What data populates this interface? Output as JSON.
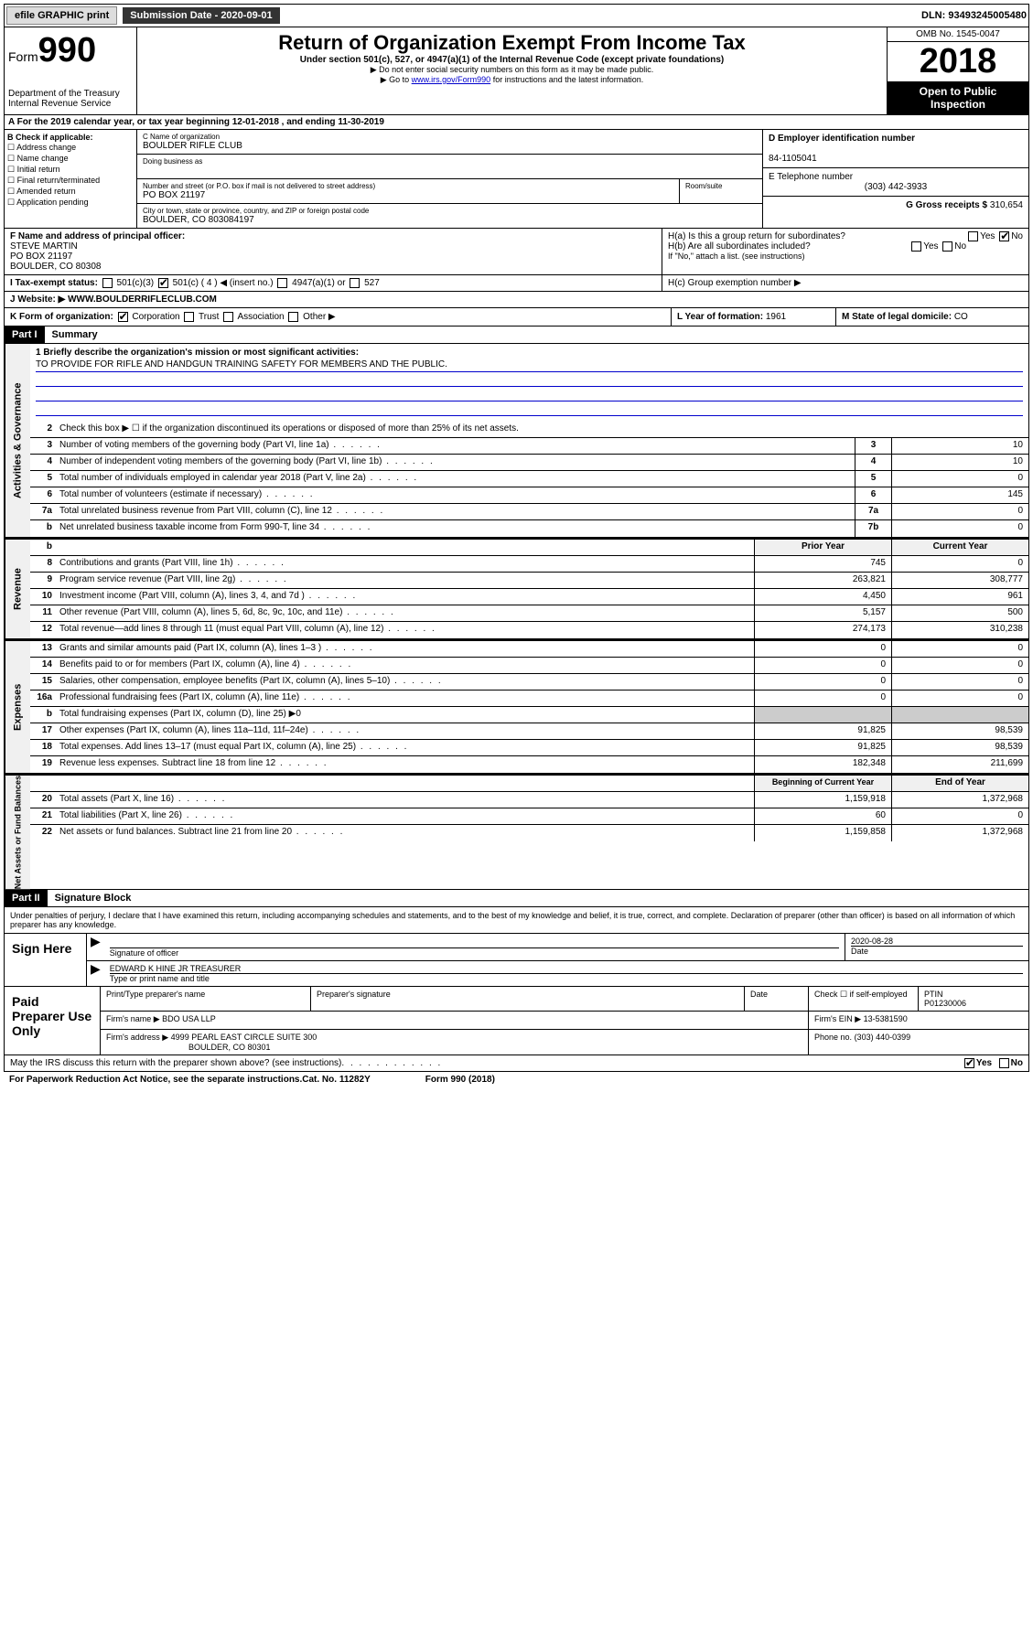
{
  "topbar": {
    "efile": "efile GRAPHIC print",
    "submission_label": "Submission Date - 2020-09-01",
    "dln": "DLN: 93493245005480"
  },
  "header": {
    "form_label": "Form",
    "form_number": "990",
    "dept": "Department of the Treasury",
    "irs": "Internal Revenue Service",
    "title": "Return of Organization Exempt From Income Tax",
    "subtitle": "Under section 501(c), 527, or 4947(a)(1) of the Internal Revenue Code (except private foundations)",
    "note1": "▶ Do not enter social security numbers on this form as it may be made public.",
    "note2_pre": "▶ Go to ",
    "note2_link": "www.irs.gov/Form990",
    "note2_post": " for instructions and the latest information.",
    "omb": "OMB No. 1545-0047",
    "year": "2018",
    "open": "Open to Public Inspection"
  },
  "taxyear": "A For the 2019 calendar year, or tax year beginning 12-01-2018   , and ending 11-30-2019",
  "boxB": {
    "label": "B Check if applicable:",
    "items": [
      "Address change",
      "Name change",
      "Initial return",
      "Final return/terminated",
      "Amended return",
      "Application pending"
    ]
  },
  "boxC": {
    "name_label": "C Name of organization",
    "name": "BOULDER RIFLE CLUB",
    "dba_label": "Doing business as",
    "addr_label": "Number and street (or P.O. box if mail is not delivered to street address)",
    "room_label": "Room/suite",
    "addr": "PO BOX 21197",
    "city_label": "City or town, state or province, country, and ZIP or foreign postal code",
    "city": "BOULDER, CO  803084197"
  },
  "boxD": {
    "label": "D Employer identification number",
    "value": "84-1105041"
  },
  "boxE": {
    "label": "E Telephone number",
    "value": "(303) 442-3933"
  },
  "boxG": {
    "label": "G Gross receipts $",
    "value": "310,654"
  },
  "boxF": {
    "label": "F Name and address of principal officer:",
    "name": "STEVE MARTIN",
    "addr1": "PO BOX 21197",
    "addr2": "BOULDER, CO  80308"
  },
  "boxH": {
    "a": "H(a)  Is this a group return for subordinates?",
    "b": "H(b)  Are all subordinates included?",
    "b_note": "If \"No,\" attach a list. (see instructions)",
    "c": "H(c)  Group exemption number ▶",
    "yes": "Yes",
    "no": "No"
  },
  "boxI": {
    "label": "I Tax-exempt status:",
    "c3": "501(c)(3)",
    "c": "501(c) ( 4 ) ◀ (insert no.)",
    "a1": "4947(a)(1) or",
    "527": "527"
  },
  "boxJ": {
    "label": "J   Website: ▶",
    "value": "WWW.BOULDERRIFLECLUB.COM"
  },
  "boxK": {
    "label": "K Form of organization:",
    "corp": "Corporation",
    "trust": "Trust",
    "assoc": "Association",
    "other": "Other ▶"
  },
  "boxL": {
    "label": "L Year of formation:",
    "value": "1961"
  },
  "boxM": {
    "label": "M State of legal domicile:",
    "value": "CO"
  },
  "part1": {
    "header": "Part I",
    "title": "Summary"
  },
  "mission": {
    "label": "1  Briefly describe the organization's mission or most significant activities:",
    "text": "TO PROVIDE FOR RIFLE AND HANDGUN TRAINING SAFETY FOR MEMBERS AND THE PUBLIC."
  },
  "gov_lines": [
    {
      "num": "2",
      "desc": "Check this box ▶ ☐  if the organization discontinued its operations or disposed of more than 25% of its net assets."
    },
    {
      "num": "3",
      "desc": "Number of voting members of the governing body (Part VI, line 1a)",
      "box": "3",
      "val": "10"
    },
    {
      "num": "4",
      "desc": "Number of independent voting members of the governing body (Part VI, line 1b)",
      "box": "4",
      "val": "10"
    },
    {
      "num": "5",
      "desc": "Total number of individuals employed in calendar year 2018 (Part V, line 2a)",
      "box": "5",
      "val": "0"
    },
    {
      "num": "6",
      "desc": "Total number of volunteers (estimate if necessary)",
      "box": "6",
      "val": "145"
    },
    {
      "num": "7a",
      "desc": "Total unrelated business revenue from Part VIII, column (C), line 12",
      "box": "7a",
      "val": "0"
    },
    {
      "num": "b",
      "desc": "Net unrelated business taxable income from Form 990-T, line 34",
      "box": "7b",
      "val": "0"
    }
  ],
  "rev_header": {
    "prior": "Prior Year",
    "current": "Current Year"
  },
  "rev_lines": [
    {
      "num": "8",
      "desc": "Contributions and grants (Part VIII, line 1h)",
      "prior": "745",
      "curr": "0"
    },
    {
      "num": "9",
      "desc": "Program service revenue (Part VIII, line 2g)",
      "prior": "263,821",
      "curr": "308,777"
    },
    {
      "num": "10",
      "desc": "Investment income (Part VIII, column (A), lines 3, 4, and 7d )",
      "prior": "4,450",
      "curr": "961"
    },
    {
      "num": "11",
      "desc": "Other revenue (Part VIII, column (A), lines 5, 6d, 8c, 9c, 10c, and 11e)",
      "prior": "5,157",
      "curr": "500"
    },
    {
      "num": "12",
      "desc": "Total revenue—add lines 8 through 11 (must equal Part VIII, column (A), line 12)",
      "prior": "274,173",
      "curr": "310,238"
    }
  ],
  "exp_lines": [
    {
      "num": "13",
      "desc": "Grants and similar amounts paid (Part IX, column (A), lines 1–3 )",
      "prior": "0",
      "curr": "0"
    },
    {
      "num": "14",
      "desc": "Benefits paid to or for members (Part IX, column (A), line 4)",
      "prior": "0",
      "curr": "0"
    },
    {
      "num": "15",
      "desc": "Salaries, other compensation, employee benefits (Part IX, column (A), lines 5–10)",
      "prior": "0",
      "curr": "0"
    },
    {
      "num": "16a",
      "desc": "Professional fundraising fees (Part IX, column (A), line 11e)",
      "prior": "0",
      "curr": "0"
    },
    {
      "num": "b",
      "desc": "Total fundraising expenses (Part IX, column (D), line 25) ▶0",
      "prior": "",
      "curr": ""
    },
    {
      "num": "17",
      "desc": "Other expenses (Part IX, column (A), lines 11a–11d, 11f–24e)",
      "prior": "91,825",
      "curr": "98,539"
    },
    {
      "num": "18",
      "desc": "Total expenses. Add lines 13–17 (must equal Part IX, column (A), line 25)",
      "prior": "91,825",
      "curr": "98,539"
    },
    {
      "num": "19",
      "desc": "Revenue less expenses. Subtract line 18 from line 12",
      "prior": "182,348",
      "curr": "211,699"
    }
  ],
  "net_header": {
    "begin": "Beginning of Current Year",
    "end": "End of Year"
  },
  "net_lines": [
    {
      "num": "20",
      "desc": "Total assets (Part X, line 16)",
      "prior": "1,159,918",
      "curr": "1,372,968"
    },
    {
      "num": "21",
      "desc": "Total liabilities (Part X, line 26)",
      "prior": "60",
      "curr": "0"
    },
    {
      "num": "22",
      "desc": "Net assets or fund balances. Subtract line 21 from line 20",
      "prior": "1,159,858",
      "curr": "1,372,968"
    }
  ],
  "part2": {
    "header": "Part II",
    "title": "Signature Block"
  },
  "perjury": "Under penalties of perjury, I declare that I have examined this return, including accompanying schedules and statements, and to the best of my knowledge and belief, it is true, correct, and complete. Declaration of preparer (other than officer) is based on all information of which preparer has any knowledge.",
  "sign": {
    "here": "Sign Here",
    "sig_label": "Signature of officer",
    "date": "2020-08-28",
    "date_label": "Date",
    "name": "EDWARD K HINE JR TREASURER",
    "name_label": "Type or print name and title"
  },
  "prep": {
    "label": "Paid Preparer Use Only",
    "h1": "Print/Type preparer's name",
    "h2": "Preparer's signature",
    "h3": "Date",
    "h4_a": "Check ☐ if self-employed",
    "h5": "PTIN",
    "ptin": "P01230006",
    "firm_label": "Firm's name    ▶",
    "firm": "BDO USA LLP",
    "ein_label": "Firm's EIN ▶",
    "ein": "13-5381590",
    "addr_label": "Firm's address ▶",
    "addr1": "4999 PEARL EAST CIRCLE SUITE 300",
    "addr2": "BOULDER, CO  80301",
    "phone_label": "Phone no.",
    "phone": "(303) 440-0399"
  },
  "discuss": "May the IRS discuss this return with the preparer shown above? (see instructions)",
  "footer": {
    "pra": "For Paperwork Reduction Act Notice, see the separate instructions.",
    "cat": "Cat. No. 11282Y",
    "form": "Form 990 (2018)"
  },
  "labels": {
    "gov": "Activities & Governance",
    "rev": "Revenue",
    "exp": "Expenses",
    "net": "Net Assets or Fund Balances"
  }
}
